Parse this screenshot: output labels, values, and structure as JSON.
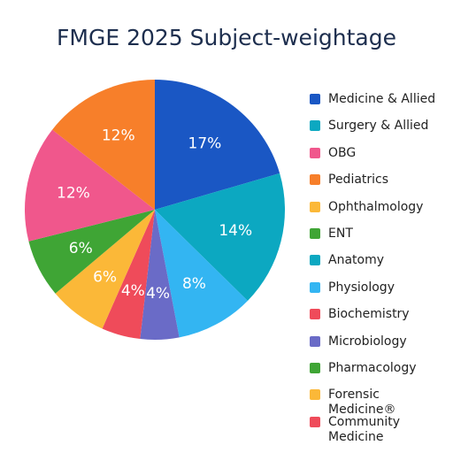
{
  "chart_data": {
    "type": "pie",
    "title": "FMGE 2025 Subject-weightage",
    "slices": [
      {
        "label": "Medicine & Allied",
        "value": 17,
        "display": "17%",
        "color": "#1a57c4"
      },
      {
        "label": "Surgery & Allied",
        "value": 14,
        "display": "14%",
        "color": "#0ca8c1"
      },
      {
        "label": "Physiology",
        "value": 8,
        "display": "8%",
        "color": "#33b5f2"
      },
      {
        "label": "Microbiology",
        "value": 4,
        "display": "4%",
        "color": "#6a6bc7"
      },
      {
        "label": "Biochemistry",
        "value": 4,
        "display": "4%",
        "color": "#ef4b5a"
      },
      {
        "label": "Ophthalmology",
        "value": 6,
        "display": "6%",
        "color": "#fbb838"
      },
      {
        "label": "ENT",
        "value": 6,
        "display": "6%",
        "color": "#3fa535"
      },
      {
        "label": "OBG",
        "value": 12,
        "display": "12%",
        "color": "#f0578c"
      },
      {
        "label": "Pediatrics",
        "value": 12,
        "display": "12%",
        "color": "#f77f2a"
      }
    ],
    "legend": [
      {
        "label": "Medicine & Allied",
        "color": "#1a57c4"
      },
      {
        "label": "Surgery & Allied",
        "color": "#0ca8c1"
      },
      {
        "label": "OBG",
        "color": "#f0578c"
      },
      {
        "label": "Pediatrics",
        "color": "#f77f2a"
      },
      {
        "label": "Ophthalmology",
        "color": "#fbb838"
      },
      {
        "label": "ENT",
        "color": "#3fa535"
      },
      {
        "label": "Anatomy",
        "color": "#0ca8c1"
      },
      {
        "label": "Physiology",
        "color": "#33b5f2"
      },
      {
        "label": "Biochemistry",
        "color": "#ef4b5a"
      },
      {
        "label": "Microbiology",
        "color": "#6a6bc7"
      },
      {
        "label": "Pharmacology",
        "color": "#3fa535"
      },
      {
        "label": "Forensic Medicine®",
        "color": "#fbb838"
      },
      {
        "label": "Community Medicine",
        "color": "#ef4b5a"
      }
    ],
    "legend_position": "right"
  }
}
